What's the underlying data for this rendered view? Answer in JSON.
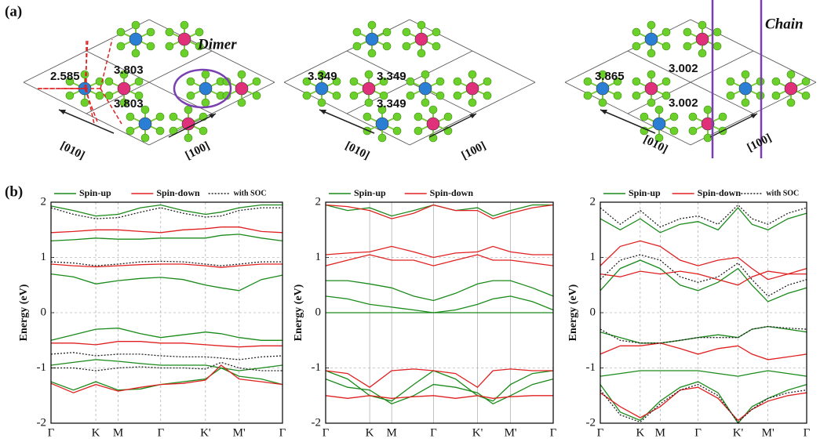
{
  "panel_labels": [
    "(a)",
    "(b)"
  ],
  "structures": [
    {
      "label": "Dimer",
      "distances": [
        "2.585",
        "3.803",
        "3.803"
      ],
      "directions": [
        "[010]",
        "[100]"
      ]
    },
    {
      "distances": [
        "3.349",
        "3.349",
        "3.349"
      ],
      "directions": [
        "[010]",
        "[100]"
      ]
    },
    {
      "label": "Chain",
      "distances": [
        "3.865",
        "3.002",
        "3.002"
      ],
      "directions": [
        "[010]",
        "[100]"
      ]
    }
  ],
  "chart_data": [
    {
      "type": "line",
      "y_label": "Energy (eV)",
      "x": [
        0,
        0.5,
        1,
        1.5,
        2,
        2.45,
        2.95,
        3.45,
        3.8,
        4.2,
        4.7,
        5.17
      ],
      "xlim": [
        0,
        5.17
      ],
      "xticks": [
        {
          "value": 0,
          "label": "Γ"
        },
        {
          "value": 1,
          "label": "K"
        },
        {
          "value": 1.5,
          "label": "M"
        },
        {
          "value": 2.45,
          "label": "Γ"
        },
        {
          "value": 3.45,
          "label": "K'"
        },
        {
          "value": 4.2,
          "label": "M'"
        },
        {
          "value": 5.17,
          "label": "Γ"
        }
      ],
      "ylim": [
        -2,
        2
      ],
      "yticks": [
        2,
        1,
        0,
        -1,
        -2
      ],
      "grid": "dotted",
      "series": [
        {
          "name": "Spin-up",
          "color": "#1a8a1a",
          "line_style": "solid",
          "bands": [
            [
              1.93,
              1.85,
              1.75,
              1.78,
              1.9,
              1.95,
              1.85,
              1.78,
              1.82,
              1.9,
              1.95,
              1.95
            ],
            [
              1.3,
              1.32,
              1.35,
              1.33,
              1.33,
              1.35,
              1.35,
              1.35,
              1.4,
              1.42,
              1.35,
              1.3
            ],
            [
              0.7,
              0.65,
              0.52,
              0.58,
              0.62,
              0.64,
              0.6,
              0.5,
              0.45,
              0.4,
              0.6,
              0.68
            ],
            [
              -0.5,
              -0.4,
              -0.3,
              -0.28,
              -0.38,
              -0.45,
              -0.4,
              -0.35,
              -0.38,
              -0.45,
              -0.5,
              -0.5
            ],
            [
              -0.95,
              -0.9,
              -0.85,
              -0.88,
              -0.92,
              -0.95,
              -0.95,
              -0.95,
              -1.0,
              -1.05,
              -1.0,
              -0.95
            ],
            [
              -1.25,
              -1.4,
              -1.25,
              -1.4,
              -1.38,
              -1.3,
              -1.25,
              -1.2,
              -1.0,
              -1.15,
              -1.2,
              -1.3
            ]
          ]
        },
        {
          "name": "Spin-down",
          "color": "#e02020",
          "line_style": "solid",
          "bands": [
            [
              1.45,
              1.47,
              1.5,
              1.5,
              1.47,
              1.45,
              1.5,
              1.52,
              1.55,
              1.55,
              1.47,
              1.45
            ],
            [
              0.88,
              0.85,
              0.83,
              0.85,
              0.87,
              0.88,
              0.88,
              0.85,
              0.82,
              0.85,
              0.88,
              0.88
            ],
            [
              -0.55,
              -0.55,
              -0.58,
              -0.52,
              -0.52,
              -0.55,
              -0.55,
              -0.58,
              -0.6,
              -0.62,
              -0.6,
              -0.6
            ],
            [
              -1.28,
              -1.45,
              -1.3,
              -1.42,
              -1.35,
              -1.3,
              -1.28,
              -1.22,
              -0.95,
              -1.2,
              -1.25,
              -1.3
            ]
          ]
        },
        {
          "name": "with SOC",
          "color": "#222222",
          "line_style": "dotted",
          "bands": [
            [
              1.9,
              1.78,
              1.7,
              1.72,
              1.82,
              1.9,
              1.8,
              1.73,
              1.75,
              1.85,
              1.9,
              1.9
            ],
            [
              0.92,
              0.9,
              0.85,
              0.88,
              0.92,
              0.93,
              0.92,
              0.88,
              0.85,
              0.88,
              0.92,
              0.92
            ],
            [
              -0.75,
              -0.72,
              -0.78,
              -0.75,
              -0.75,
              -0.78,
              -0.8,
              -0.8,
              -0.82,
              -0.85,
              -0.8,
              -0.78
            ],
            [
              -1.0,
              -1.0,
              -1.05,
              -1.0,
              -0.98,
              -1.0,
              -1.0,
              -1.02,
              -0.9,
              -1.0,
              -1.05,
              -1.05
            ]
          ]
        }
      ]
    },
    {
      "type": "line",
      "y_label": "Energy (eV)",
      "x": [
        0,
        0.5,
        1,
        1.5,
        2,
        2.45,
        2.95,
        3.45,
        3.8,
        4.2,
        4.7,
        5.17
      ],
      "xlim": [
        0,
        5.17
      ],
      "xticks": [
        {
          "value": 0,
          "label": "Γ"
        },
        {
          "value": 1,
          "label": "K"
        },
        {
          "value": 1.5,
          "label": "M"
        },
        {
          "value": 2.45,
          "label": "Γ"
        },
        {
          "value": 3.45,
          "label": "K'"
        },
        {
          "value": 4.2,
          "label": "M'"
        },
        {
          "value": 5.17,
          "label": "Γ"
        }
      ],
      "ylim": [
        -2,
        2
      ],
      "yticks": [
        2,
        1,
        0,
        -1,
        -2
      ],
      "grid": "solid",
      "series": [
        {
          "name": "Spin-up",
          "color": "#1a8a1a",
          "line_style": "solid",
          "bands": [
            [
              1.95,
              1.85,
              1.9,
              1.75,
              1.85,
              1.95,
              1.85,
              1.9,
              1.75,
              1.85,
              1.95,
              1.95
            ],
            [
              0.58,
              0.58,
              0.52,
              0.45,
              0.3,
              0.22,
              0.35,
              0.52,
              0.58,
              0.58,
              0.45,
              0.3
            ],
            [
              0.3,
              0.25,
              0.15,
              0.1,
              0.05,
              0,
              0.05,
              0.15,
              0.25,
              0.3,
              0.2,
              0.05
            ],
            [
              0,
              0,
              0,
              0,
              0,
              0,
              0,
              0,
              0,
              0,
              0,
              0
            ],
            [
              -1.05,
              -1.2,
              -1.5,
              -1.6,
              -1.3,
              -1.05,
              -1.2,
              -1.5,
              -1.6,
              -1.3,
              -1.1,
              -1.05
            ],
            [
              -1.2,
              -1.35,
              -1.4,
              -1.65,
              -1.5,
              -1.3,
              -1.35,
              -1.45,
              -1.65,
              -1.5,
              -1.3,
              -1.2
            ]
          ]
        },
        {
          "name": "Spin-down",
          "color": "#e02020",
          "line_style": "solid",
          "bands": [
            [
              1.95,
              1.92,
              1.85,
              1.7,
              1.8,
              1.95,
              1.85,
              1.85,
              1.7,
              1.8,
              1.9,
              1.95
            ],
            [
              1.05,
              1.08,
              1.1,
              1.2,
              1.1,
              1.0,
              1.08,
              1.1,
              1.2,
              1.1,
              1.05,
              1.05
            ],
            [
              0.85,
              0.95,
              1.05,
              0.95,
              0.95,
              0.85,
              0.95,
              1.05,
              0.95,
              0.95,
              0.9,
              0.85
            ],
            [
              -1.05,
              -1.1,
              -1.35,
              -1.05,
              -1.02,
              -1.05,
              -1.1,
              -1.35,
              -1.05,
              -1.02,
              -1.05,
              -1.05
            ],
            [
              -1.5,
              -1.55,
              -1.5,
              -1.55,
              -1.52,
              -1.5,
              -1.55,
              -1.5,
              -1.55,
              -1.52,
              -1.5,
              -1.5
            ]
          ]
        }
      ]
    },
    {
      "type": "line",
      "y_label": "Energy (eV)",
      "x": [
        0,
        0.5,
        1,
        1.5,
        2,
        2.45,
        2.95,
        3.45,
        3.8,
        4.2,
        4.7,
        5.17
      ],
      "xlim": [
        0,
        5.17
      ],
      "xticks": [
        {
          "value": 0,
          "label": "Γ"
        },
        {
          "value": 1,
          "label": "K"
        },
        {
          "value": 1.5,
          "label": "M"
        },
        {
          "value": 2.45,
          "label": "Γ"
        },
        {
          "value": 3.45,
          "label": "K'"
        },
        {
          "value": 4.2,
          "label": "M'"
        },
        {
          "value": 5.17,
          "label": "Γ"
        }
      ],
      "ylim": [
        -2,
        2
      ],
      "yticks": [
        2,
        1,
        0,
        -1,
        -2
      ],
      "grid": "dotted",
      "series": [
        {
          "name": "Spin-up",
          "color": "#1a8a1a",
          "line_style": "solid",
          "bands": [
            [
              1.7,
              1.5,
              1.7,
              1.45,
              1.6,
              1.65,
              1.5,
              1.9,
              1.6,
              1.5,
              1.7,
              1.8
            ],
            [
              0.4,
              0.8,
              0.95,
              0.8,
              0.5,
              0.4,
              0.55,
              0.8,
              0.5,
              0.2,
              0.35,
              0.45
            ],
            [
              -0.35,
              -0.45,
              -0.55,
              -0.55,
              -0.5,
              -0.45,
              -0.4,
              -0.45,
              -0.3,
              -0.25,
              -0.3,
              -0.35
            ],
            [
              -1.15,
              -1.1,
              -1.05,
              -1.05,
              -1.05,
              -1.05,
              -1.1,
              -1.15,
              -1.1,
              -1.05,
              -1.1,
              -1.15
            ],
            [
              -1.3,
              -1.8,
              -1.95,
              -1.6,
              -1.35,
              -1.25,
              -1.45,
              -2.0,
              -1.7,
              -1.55,
              -1.4,
              -1.3
            ]
          ]
        },
        {
          "name": "Spin-down",
          "color": "#e02020",
          "line_style": "solid",
          "bands": [
            [
              0.85,
              1.2,
              1.3,
              1.2,
              0.95,
              0.85,
              0.95,
              1.0,
              0.8,
              0.6,
              0.7,
              0.8
            ],
            [
              0.7,
              0.65,
              0.75,
              0.7,
              0.75,
              0.7,
              0.6,
              0.5,
              0.65,
              0.75,
              0.7,
              0.7
            ],
            [
              -0.75,
              -0.6,
              -0.6,
              -0.55,
              -0.65,
              -0.75,
              -0.65,
              -0.6,
              -0.75,
              -0.85,
              -0.8,
              -0.75
            ],
            [
              -1.45,
              -1.7,
              -1.9,
              -1.7,
              -1.4,
              -1.35,
              -1.55,
              -1.95,
              -1.75,
              -1.6,
              -1.5,
              -1.45
            ]
          ]
        },
        {
          "name": "with SOC",
          "color": "#222222",
          "line_style": "dotted",
          "bands": [
            [
              1.9,
              1.6,
              1.85,
              1.55,
              1.7,
              1.75,
              1.6,
              1.95,
              1.7,
              1.6,
              1.8,
              1.9
            ],
            [
              0.6,
              0.95,
              1.05,
              0.95,
              0.65,
              0.55,
              0.65,
              0.9,
              0.6,
              0.3,
              0.5,
              0.6
            ],
            [
              -0.3,
              -0.5,
              -0.55,
              -0.55,
              -0.5,
              -0.45,
              -0.45,
              -0.45,
              -0.3,
              -0.25,
              -0.28,
              -0.3
            ],
            [
              -1.4,
              -1.85,
              -1.98,
              -1.65,
              -1.4,
              -1.3,
              -1.5,
              -1.98,
              -1.75,
              -1.55,
              -1.45,
              -1.4
            ]
          ]
        }
      ]
    }
  ]
}
